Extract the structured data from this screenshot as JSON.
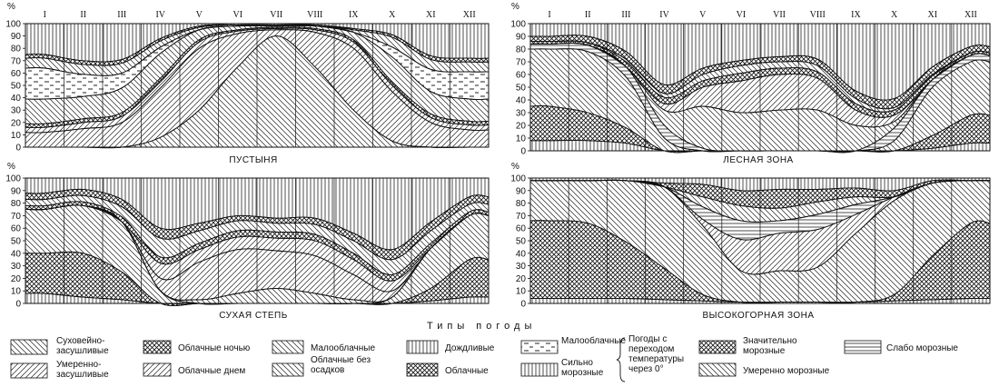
{
  "legend_title": "Типы погоды",
  "months": [
    "I",
    "II",
    "III",
    "IV",
    "V",
    "VI",
    "VII",
    "VIII",
    "IX",
    "X",
    "XI",
    "XII"
  ],
  "y_unit": "%",
  "y_ticks": [
    0,
    10,
    20,
    30,
    40,
    50,
    60,
    70,
    80,
    90,
    100
  ],
  "chart_data": [
    {
      "type": "area",
      "title": "ПУСТЫНЯ",
      "x": [
        "I",
        "II",
        "III",
        "IV",
        "V",
        "VI",
        "VII",
        "VIII",
        "IX",
        "X",
        "XI",
        "XII"
      ],
      "ylim": [
        0,
        100
      ],
      "series": [
        {
          "name": "Суховейно-засушливые",
          "values": [
            0,
            0,
            0,
            8,
            30,
            65,
            90,
            65,
            30,
            5,
            0,
            0
          ],
          "pattern": "diag_back"
        },
        {
          "name": "Умеренно-засушливые",
          "values": [
            12,
            15,
            20,
            40,
            50,
            27,
            5,
            28,
            50,
            40,
            20,
            14
          ],
          "pattern": "diag_fwd"
        },
        {
          "name": "Облачные днем",
          "values": [
            4,
            5,
            5,
            5,
            5,
            2,
            1,
            2,
            5,
            5,
            4,
            4
          ],
          "pattern": "diag_fwd"
        },
        {
          "name": "Облачные ночью",
          "values": [
            3,
            3,
            3,
            3,
            2,
            1,
            1,
            1,
            2,
            3,
            3,
            3
          ],
          "pattern": "cross"
        },
        {
          "name": "Малооблачные",
          "values": [
            20,
            18,
            20,
            20,
            8,
            3,
            1,
            2,
            6,
            20,
            18,
            18
          ],
          "pattern": "diag_back"
        },
        {
          "name": "Малооблачные (погоды с переходом температуры через 0°)",
          "values": [
            25,
            18,
            12,
            5,
            0,
            0,
            0,
            0,
            0,
            8,
            18,
            22
          ],
          "pattern": "dash"
        },
        {
          "name": "Облачные без осадков",
          "values": [
            8,
            8,
            8,
            5,
            2,
            1,
            1,
            1,
            2,
            8,
            8,
            8
          ],
          "pattern": "diag_back"
        },
        {
          "name": "Облачные",
          "values": [
            3,
            3,
            3,
            2,
            1,
            0,
            0,
            0,
            1,
            2,
            3,
            3
          ],
          "pattern": "cross"
        },
        {
          "name": "Дождливые",
          "values": [
            25,
            30,
            29,
            12,
            2,
            1,
            1,
            1,
            4,
            9,
            26,
            28
          ],
          "pattern": "vert"
        }
      ]
    },
    {
      "type": "area",
      "title": "ЛЕСНАЯ ЗОНА",
      "x": [
        "I",
        "II",
        "III",
        "IV",
        "V",
        "VI",
        "VII",
        "VIII",
        "IX",
        "X",
        "XI",
        "XII"
      ],
      "ylim": [
        0,
        100
      ],
      "series": [
        {
          "name": "Сильно морозные",
          "values": [
            8,
            8,
            6,
            0,
            0,
            0,
            0,
            0,
            0,
            0,
            2,
            6
          ],
          "pattern": "vert"
        },
        {
          "name": "Значительно морозные",
          "values": [
            27,
            22,
            12,
            0,
            0,
            0,
            0,
            0,
            0,
            0,
            10,
            22
          ],
          "pattern": "cross"
        },
        {
          "name": "Умеренно морозные",
          "values": [
            45,
            48,
            40,
            10,
            0,
            0,
            0,
            0,
            0,
            8,
            38,
            42
          ],
          "pattern": "diag_back"
        },
        {
          "name": "Слабо морозные",
          "values": [
            4,
            5,
            8,
            10,
            2,
            0,
            0,
            0,
            0,
            10,
            6,
            5
          ],
          "pattern": "hlines"
        },
        {
          "name": "Умеренно-засушливые",
          "values": [
            0,
            0,
            0,
            12,
            33,
            30,
            32,
            32,
            20,
            5,
            0,
            0
          ],
          "pattern": "diag_back"
        },
        {
          "name": "Облачные днем",
          "values": [
            0,
            0,
            0,
            5,
            15,
            25,
            28,
            25,
            12,
            5,
            0,
            0
          ],
          "pattern": "diag_fwd"
        },
        {
          "name": "Облачные ночью",
          "values": [
            2,
            2,
            4,
            5,
            5,
            6,
            5,
            5,
            5,
            4,
            3,
            2
          ],
          "pattern": "cross"
        },
        {
          "name": "Малооблачные",
          "values": [
            0,
            0,
            2,
            3,
            5,
            6,
            5,
            5,
            4,
            2,
            1,
            0
          ],
          "pattern": "diag_back"
        },
        {
          "name": "Облачные",
          "values": [
            4,
            5,
            6,
            7,
            5,
            4,
            4,
            5,
            6,
            7,
            6,
            5
          ],
          "pattern": "cross"
        },
        {
          "name": "Дождливые",
          "values": [
            10,
            10,
            22,
            48,
            35,
            29,
            26,
            28,
            53,
            59,
            34,
            18
          ],
          "pattern": "vert"
        }
      ]
    },
    {
      "type": "area",
      "title": "СУХАЯ СТЕПЬ",
      "x": [
        "I",
        "II",
        "III",
        "IV",
        "V",
        "VI",
        "VII",
        "VIII",
        "IX",
        "X",
        "XI",
        "XII"
      ],
      "ylim": [
        0,
        100
      ],
      "series": [
        {
          "name": "Сильно морозные",
          "values": [
            8,
            5,
            3,
            0,
            0,
            0,
            0,
            0,
            0,
            0,
            2,
            5
          ],
          "pattern": "vert"
        },
        {
          "name": "Значительно морозные",
          "values": [
            32,
            35,
            22,
            0,
            0,
            0,
            0,
            0,
            0,
            0,
            10,
            30
          ],
          "pattern": "cross"
        },
        {
          "name": "Умеренно морозные",
          "values": [
            35,
            38,
            40,
            10,
            0,
            0,
            0,
            0,
            0,
            5,
            32,
            35
          ],
          "pattern": "diag_back"
        },
        {
          "name": "Суховейно-засушливые",
          "values": [
            0,
            0,
            0,
            0,
            3,
            8,
            12,
            8,
            3,
            0,
            0,
            0
          ],
          "pattern": "diag_back"
        },
        {
          "name": "Умеренно-засушливые",
          "values": [
            0,
            0,
            0,
            10,
            30,
            35,
            30,
            30,
            20,
            5,
            0,
            0
          ],
          "pattern": "diag_fwd"
        },
        {
          "name": "Облачные днем",
          "values": [
            0,
            0,
            0,
            12,
            10,
            10,
            10,
            12,
            12,
            8,
            0,
            0
          ],
          "pattern": "diag_fwd"
        },
        {
          "name": "Облачные ночью",
          "values": [
            3,
            3,
            4,
            5,
            5,
            5,
            5,
            5,
            5,
            5,
            4,
            3
          ],
          "pattern": "cross"
        },
        {
          "name": "Малооблачные",
          "values": [
            5,
            5,
            8,
            15,
            10,
            8,
            7,
            8,
            10,
            12,
            10,
            6
          ],
          "pattern": "diag_back"
        },
        {
          "name": "Облачные",
          "values": [
            5,
            5,
            6,
            8,
            6,
            4,
            4,
            5,
            6,
            8,
            7,
            6
          ],
          "pattern": "cross"
        },
        {
          "name": "Дождливые",
          "values": [
            12,
            9,
            17,
            40,
            36,
            30,
            32,
            32,
            44,
            57,
            35,
            15
          ],
          "pattern": "vert"
        }
      ]
    },
    {
      "type": "area",
      "title": "ВЫСОКОГОРНАЯ ЗОНА",
      "x": [
        "I",
        "II",
        "III",
        "IV",
        "V",
        "VI",
        "VII",
        "VIII",
        "IX",
        "X",
        "XI",
        "XII"
      ],
      "ylim": [
        0,
        100
      ],
      "series": [
        {
          "name": "Сильно морозные",
          "values": [
            4,
            4,
            4,
            3,
            2,
            1,
            1,
            1,
            1,
            2,
            3,
            4
          ],
          "pattern": "vert"
        },
        {
          "name": "Значительно морозные",
          "values": [
            62,
            60,
            45,
            25,
            5,
            0,
            0,
            0,
            0,
            5,
            35,
            60
          ],
          "pattern": "cross"
        },
        {
          "name": "Умеренно морозные",
          "values": [
            32,
            34,
            49,
            65,
            55,
            25,
            25,
            28,
            55,
            75,
            58,
            34
          ],
          "pattern": "diag_back"
        },
        {
          "name": "Облачные днем",
          "values": [
            0,
            0,
            0,
            0,
            5,
            25,
            30,
            30,
            15,
            3,
            0,
            0
          ],
          "pattern": "diag_fwd"
        },
        {
          "name": "Слабо морозные",
          "values": [
            0,
            0,
            0,
            0,
            10,
            15,
            10,
            12,
            8,
            0,
            0,
            0
          ],
          "pattern": "hlines"
        },
        {
          "name": "Малооблачные",
          "values": [
            0,
            0,
            0,
            0,
            8,
            12,
            10,
            10,
            6,
            0,
            0,
            0
          ],
          "pattern": "diag_back"
        },
        {
          "name": "Облачные",
          "values": [
            0,
            0,
            0,
            3,
            10,
            12,
            15,
            10,
            7,
            5,
            2,
            0
          ],
          "pattern": "cross"
        },
        {
          "name": "Дождливые",
          "values": [
            2,
            2,
            2,
            4,
            5,
            10,
            9,
            9,
            8,
            10,
            2,
            2
          ],
          "pattern": "vert"
        }
      ]
    }
  ],
  "legend": {
    "items": [
      {
        "label": "Суховейно-засушливые",
        "pattern": "diag_back"
      },
      {
        "label": "Умеренно-засушливые",
        "pattern": "diag_fwd"
      },
      {
        "label": "Облачные ночью",
        "pattern": "cross"
      },
      {
        "label": "Облачные днем",
        "pattern": "diag_fwd"
      },
      {
        "label": "Малооблачные",
        "pattern": "diag_back"
      },
      {
        "label": "Облачные без осадков",
        "pattern": "diag_back"
      },
      {
        "label": "Дождливые",
        "pattern": "vert"
      },
      {
        "label": "Облачные",
        "pattern": "cross"
      },
      {
        "label": "Малооблачные",
        "pattern": "dash"
      },
      {
        "label": "Сильно морозные",
        "pattern": "vert"
      },
      {
        "label": "Значительно морозные",
        "pattern": "cross"
      },
      {
        "label": "Умеренно морозные",
        "pattern": "diag_back"
      },
      {
        "label": "Слабо морозные",
        "pattern": "hlines"
      }
    ],
    "bracket_label": "Погоды с переходом температуры через 0°"
  }
}
